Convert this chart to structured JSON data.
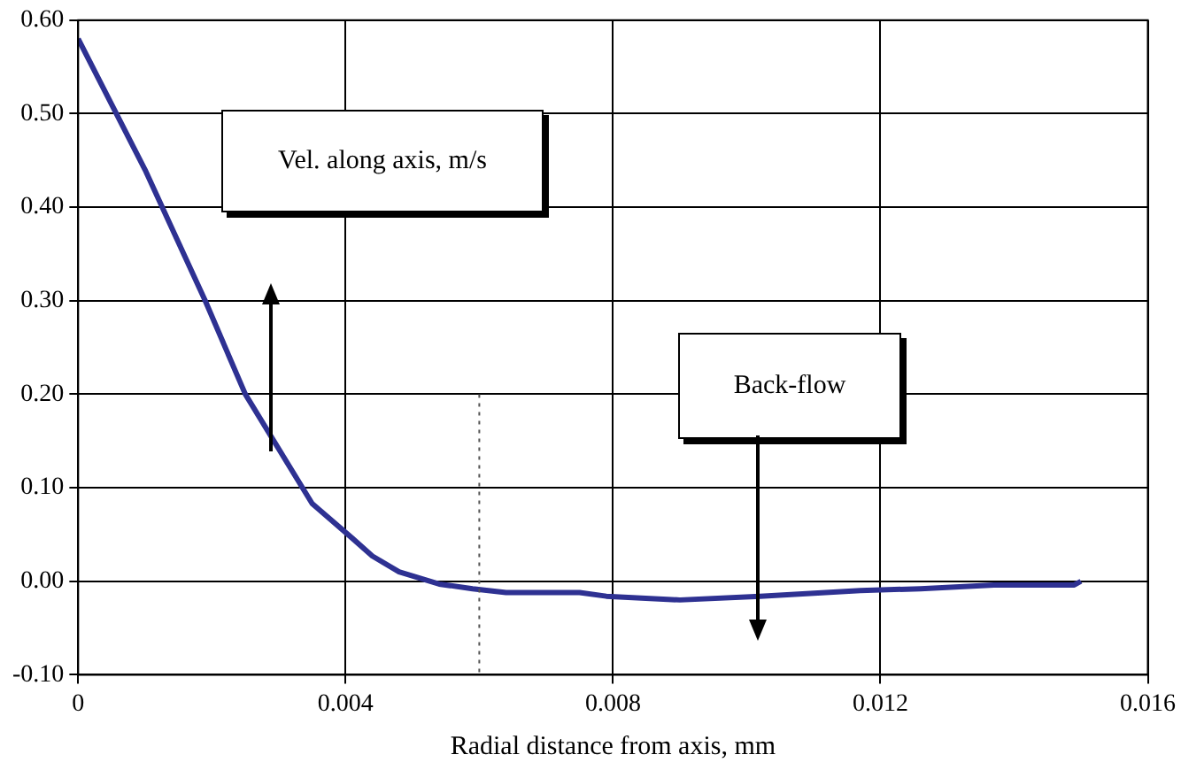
{
  "chart_data": {
    "type": "line",
    "xlabel": "Radial distance from axis, mm",
    "x": [
      0,
      0.001,
      0.0019,
      0.0025,
      0.0035,
      0.0041,
      0.0044,
      0.0048,
      0.0054,
      0.0059,
      0.0064,
      0.0075,
      0.0079,
      0.009,
      0.0102,
      0.0117,
      0.0126,
      0.0137,
      0.0149,
      0.015
    ],
    "series": [
      {
        "color": "#2e3192",
        "values": [
          0.58,
          0.44,
          0.3,
          0.2,
          0.083,
          0.046,
          0.027,
          0.01,
          -0.003,
          -0.008,
          -0.012,
          -0.012,
          -0.016,
          -0.02,
          -0.016,
          -0.01,
          -0.008,
          -0.004,
          -0.004,
          0
        ]
      }
    ],
    "xlim": [
      0,
      0.016
    ],
    "xticks": [
      0,
      0.004,
      0.008,
      0.012,
      0.016
    ],
    "ylim": [
      -0.1,
      0.6
    ],
    "yticks": [
      {
        "value": -0.1,
        "label": "-0.10"
      },
      {
        "value": 0,
        "label": "0.00"
      },
      {
        "value": 0.1,
        "label": "0.10"
      },
      {
        "value": 0.2,
        "label": "0.20"
      },
      {
        "value": 0.3,
        "label": "0.30"
      },
      {
        "value": 0.4,
        "label": "0.40"
      },
      {
        "value": 0.5,
        "label": "0.50"
      },
      {
        "value": 0.6,
        "label": "0.60"
      }
    ],
    "grid": true,
    "marker": "none",
    "line_style": "solid",
    "legend": false,
    "ref_lines": [
      {
        "axis": "x",
        "value": 0.006,
        "line_style": "dotted",
        "color": "#555555"
      }
    ],
    "annotations": [
      "Vel. along axis, m/s",
      "Back-flow"
    ]
  }
}
